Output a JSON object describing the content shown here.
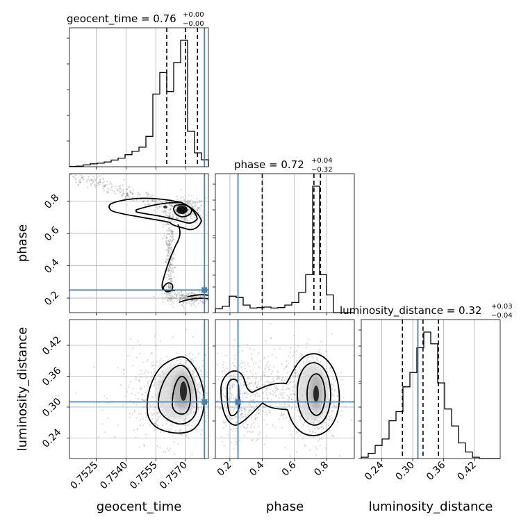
{
  "chart_data": {
    "type": "corner",
    "parameters": [
      "geocent_time",
      "phase",
      "luminosity_distance"
    ],
    "titles": [
      {
        "param": "geocent_time",
        "text": "geocent_time = 0.76",
        "sup": "+0.00",
        "sub": "−0.00"
      },
      {
        "param": "phase",
        "text": "phase = 0.72",
        "sup": "+0.04",
        "sub": "−0.32"
      },
      {
        "param": "luminosity_distance",
        "text": "luminosity_distance = 0.32",
        "sup": "+0.03",
        "sub": "−0.04"
      }
    ],
    "axis_ranges": {
      "geocent_time": [
        0.75115,
        0.75815
      ],
      "phase": [
        0.11,
        0.97
      ],
      "luminosity_distance": [
        0.2,
        0.47
      ]
    },
    "ticks": {
      "geocent_time": {
        "values": [
          0.7525,
          0.754,
          0.7555,
          0.757
        ],
        "labels": [
          "0.7525",
          "0.7540",
          "0.7555",
          "0.7570"
        ]
      },
      "phase": {
        "values": [
          0.2,
          0.4,
          0.6,
          0.8
        ],
        "labels": [
          "0.2",
          "0.4",
          "0.6",
          "0.8"
        ]
      },
      "luminosity_distance": {
        "values": [
          0.24,
          0.3,
          0.36,
          0.42
        ],
        "labels": [
          "0.24",
          "0.30",
          "0.36",
          "0.42"
        ]
      }
    },
    "truths": {
      "geocent_time": 0.75795,
      "phase": 0.25,
      "luminosity_distance": 0.31
    },
    "quantiles": {
      "geocent_time": [
        0.75605,
        0.757,
        0.7576
      ],
      "phase": [
        0.4,
        0.72,
        0.76
      ],
      "luminosity_distance": [
        0.28,
        0.32,
        0.35
      ]
    },
    "histograms": {
      "geocent_time": {
        "edges": [
          0.75115,
          0.7515,
          0.75185,
          0.7522,
          0.75255,
          0.7529,
          0.75325,
          0.7536,
          0.75395,
          0.7543,
          0.75465,
          0.755,
          0.75535,
          0.7557,
          0.75605,
          0.7564,
          0.75675,
          0.7571,
          0.75745,
          0.7578,
          0.75815
        ],
        "counts": [
          0.3,
          0.5,
          1.5,
          2.3,
          2.8,
          3.8,
          5.3,
          6.8,
          9.5,
          12.3,
          15.5,
          24.0,
          57.5,
          74.5,
          59.5,
          82.3,
          100.0,
          28.0,
          11.0,
          5.5
        ]
      },
      "phase": {
        "edges": [
          0.11,
          0.153,
          0.196,
          0.239,
          0.282,
          0.325,
          0.368,
          0.411,
          0.454,
          0.497,
          0.54,
          0.583,
          0.626,
          0.669,
          0.712,
          0.755,
          0.798,
          0.841,
          0.884,
          0.927,
          0.97
        ],
        "counts": [
          3.0,
          5.0,
          13.0,
          12.0,
          6.0,
          3.6,
          4.0,
          4.4,
          3.6,
          4.0,
          6.0,
          8.0,
          16.0,
          30.0,
          100.0,
          30.0,
          14.0,
          0.0,
          0.0,
          0.0
        ]
      },
      "luminosity_distance": {
        "edges": [
          0.2,
          0.2135,
          0.227,
          0.2405,
          0.254,
          0.2675,
          0.281,
          0.2945,
          0.308,
          0.3215,
          0.335,
          0.3485,
          0.362,
          0.3755,
          0.389,
          0.4025,
          0.416,
          0.4295,
          0.443,
          0.4565,
          0.47
        ],
        "counts": [
          1.0,
          4.0,
          10.0,
          15.0,
          29.0,
          36.0,
          55.0,
          66.0,
          85.0,
          97.0,
          88.0,
          58.0,
          38.0,
          25.0,
          12.0,
          5.0,
          1.0,
          0.0,
          0.0,
          0.0
        ]
      }
    },
    "density": {
      "geocent_time_vs_phase": {
        "mode": [
          0.757,
          0.73
        ],
        "secondary": [
          0.7579,
          0.21
        ]
      },
      "geocent_time_vs_luminosity_distance": {
        "mode": [
          0.757,
          0.33
        ]
      },
      "phase_vs_luminosity_distance": {
        "mode": [
          0.72,
          0.33
        ],
        "secondary": [
          0.24,
          0.31
        ]
      }
    },
    "grid": true,
    "truth_color": "#4682b4",
    "line_color": "#000000"
  }
}
